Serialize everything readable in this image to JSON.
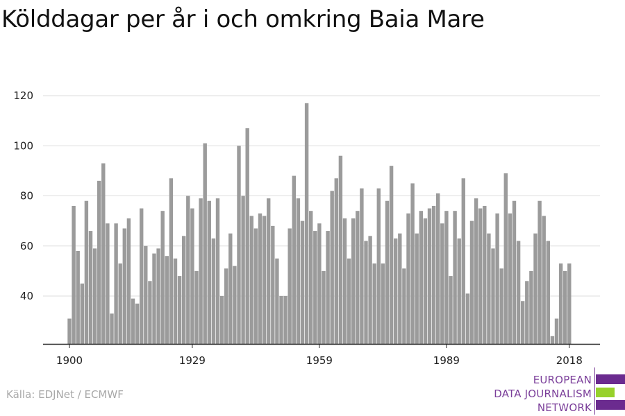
{
  "title": "Kölddagar per år i och omkring Baia Mare",
  "source": "Källa: EDJNet / ECMWF",
  "logo": {
    "lines": [
      "EUROPEAN",
      "DATA JOURNALISM",
      "NETWORK"
    ]
  },
  "colors": {
    "bar": "#9b9b9b",
    "grid": "#dddddd",
    "axis": "#222222",
    "logo_purple": "#6b2b8f",
    "logo_green": "#97d12b"
  },
  "chart_data": {
    "type": "bar",
    "title": "Kölddagar per år i och omkring Baia Mare",
    "xlabel": "",
    "ylabel": "",
    "x_ticks": [
      1900,
      1929,
      1959,
      1989,
      2018
    ],
    "y_ticks": [
      40,
      60,
      80,
      100,
      120
    ],
    "ylim": [
      21,
      120
    ],
    "grid": true,
    "categories": [
      1900,
      1901,
      1902,
      1903,
      1904,
      1905,
      1906,
      1907,
      1908,
      1909,
      1910,
      1911,
      1912,
      1913,
      1914,
      1915,
      1916,
      1917,
      1918,
      1919,
      1920,
      1921,
      1922,
      1923,
      1924,
      1925,
      1926,
      1927,
      1928,
      1929,
      1930,
      1931,
      1932,
      1933,
      1934,
      1935,
      1936,
      1937,
      1938,
      1939,
      1940,
      1941,
      1942,
      1943,
      1944,
      1945,
      1946,
      1947,
      1948,
      1949,
      1950,
      1951,
      1952,
      1953,
      1954,
      1955,
      1956,
      1957,
      1958,
      1959,
      1960,
      1961,
      1962,
      1963,
      1964,
      1965,
      1966,
      1967,
      1968,
      1969,
      1970,
      1971,
      1972,
      1973,
      1974,
      1975,
      1976,
      1977,
      1978,
      1979,
      1980,
      1981,
      1982,
      1983,
      1984,
      1985,
      1986,
      1987,
      1988,
      1989,
      1990,
      1991,
      1992,
      1993,
      1994,
      1995,
      1996,
      1997,
      1998,
      1999,
      2000,
      2001,
      2002,
      2003,
      2004,
      2005,
      2006,
      2007,
      2008,
      2009,
      2010,
      2011,
      2012,
      2013,
      2014,
      2015,
      2016,
      2017,
      2018
    ],
    "values": [
      31,
      76,
      58,
      45,
      78,
      66,
      59,
      86,
      93,
      69,
      33,
      69,
      53,
      67,
      71,
      39,
      37,
      75,
      60,
      46,
      57,
      59,
      74,
      56,
      87,
      55,
      48,
      64,
      80,
      75,
      50,
      79,
      101,
      78,
      63,
      79,
      40,
      51,
      65,
      52,
      100,
      80,
      107,
      72,
      67,
      73,
      72,
      79,
      68,
      55,
      40,
      40,
      67,
      88,
      79,
      70,
      117,
      74,
      66,
      69,
      50,
      66,
      82,
      87,
      96,
      71,
      55,
      71,
      74,
      83,
      62,
      64,
      53,
      83,
      53,
      78,
      92,
      63,
      65,
      51,
      73,
      85,
      65,
      74,
      71,
      75,
      76,
      81,
      69,
      74,
      48,
      74,
      63,
      87,
      41,
      70,
      79,
      75,
      76,
      65,
      59,
      73,
      51,
      89,
      73,
      78,
      62,
      38,
      46,
      50,
      65,
      78,
      72,
      62,
      24,
      31,
      53,
      50,
      53
    ]
  }
}
